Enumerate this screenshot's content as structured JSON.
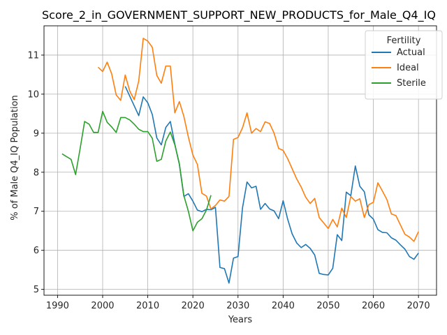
{
  "chart_data": {
    "type": "line",
    "title": "Score_2_in_GOVERNMENT_SUPPORT_NEW_PRODUCTS_for_Male_Q4_IQ",
    "xlabel": "Years",
    "ylabel": "% of Male Q4_IQ Population",
    "xlim": [
      1987,
      2074
    ],
    "ylim": [
      4.85,
      11.75
    ],
    "xticks": [
      1990,
      2000,
      2010,
      2020,
      2030,
      2040,
      2050,
      2060,
      2070
    ],
    "yticks": [
      5,
      6,
      7,
      8,
      9,
      10,
      11
    ],
    "grid": true,
    "legend": {
      "title": "Fertility",
      "placement": "top-right"
    },
    "series": [
      {
        "name": "Actual",
        "color": "#1f77b4",
        "x": [
          2005,
          2006,
          2007,
          2008,
          2009,
          2010,
          2011,
          2012,
          2013,
          2014,
          2015,
          2016,
          2017,
          2018,
          2019,
          2020,
          2021,
          2022,
          2023,
          2024,
          2025,
          2026,
          2027,
          2028,
          2029,
          2030,
          2031,
          2032,
          2033,
          2034,
          2035,
          2036,
          2037,
          2038,
          2039,
          2040,
          2041,
          2042,
          2043,
          2044,
          2045,
          2046,
          2047,
          2048,
          2049,
          2050,
          2051,
          2052,
          2053,
          2054,
          2055,
          2056,
          2057,
          2058,
          2059,
          2060,
          2061,
          2062,
          2063,
          2064,
          2065,
          2066,
          2067,
          2068,
          2069,
          2070
        ],
        "y": [
          10.2,
          9.95,
          9.7,
          9.45,
          9.93,
          9.78,
          9.48,
          8.88,
          8.7,
          9.15,
          9.3,
          8.72,
          8.2,
          7.38,
          7.45,
          7.26,
          7.03,
          6.99,
          7.05,
          7.04,
          7.1,
          5.56,
          5.53,
          5.16,
          5.8,
          5.84,
          7.09,
          7.75,
          7.6,
          7.64,
          7.05,
          7.2,
          7.06,
          7.01,
          6.81,
          7.27,
          6.8,
          6.42,
          6.19,
          6.07,
          6.15,
          6.05,
          5.88,
          5.41,
          5.38,
          5.37,
          5.54,
          6.4,
          6.25,
          7.49,
          7.4,
          8.16,
          7.64,
          7.5,
          6.91,
          6.8,
          6.53,
          6.46,
          6.45,
          6.32,
          6.26,
          6.14,
          6.03,
          5.84,
          5.77,
          5.93
        ]
      },
      {
        "name": "Ideal",
        "color": "#ff7f0e",
        "x": [
          1999,
          2000,
          2001,
          2002,
          2003,
          2004,
          2005,
          2006,
          2007,
          2008,
          2009,
          2010,
          2011,
          2012,
          2013,
          2014,
          2015,
          2016,
          2017,
          2018,
          2019,
          2020,
          2021,
          2022,
          2023,
          2024,
          2025,
          2026,
          2027,
          2028,
          2029,
          2030,
          2031,
          2032,
          2033,
          2034,
          2035,
          2036,
          2037,
          2038,
          2039,
          2040,
          2041,
          2042,
          2043,
          2044,
          2045,
          2046,
          2047,
          2048,
          2049,
          2050,
          2051,
          2052,
          2053,
          2054,
          2055,
          2056,
          2057,
          2058,
          2059,
          2060,
          2061,
          2062,
          2063,
          2064,
          2065,
          2066,
          2067,
          2068,
          2069,
          2070
        ],
        "y": [
          10.69,
          10.58,
          10.82,
          10.52,
          9.98,
          9.84,
          10.49,
          10.08,
          9.86,
          10.34,
          11.43,
          11.36,
          11.2,
          10.48,
          10.28,
          10.72,
          10.72,
          9.52,
          9.81,
          9.43,
          8.9,
          8.44,
          8.2,
          7.46,
          7.39,
          7.06,
          7.15,
          7.29,
          7.26,
          7.38,
          8.84,
          8.89,
          9.14,
          9.52,
          9.0,
          9.12,
          9.04,
          9.29,
          9.25,
          9.0,
          8.61,
          8.56,
          8.35,
          8.09,
          7.83,
          7.62,
          7.36,
          7.2,
          7.33,
          6.84,
          6.7,
          6.56,
          6.79,
          6.6,
          7.08,
          6.84,
          7.38,
          7.26,
          7.32,
          6.84,
          7.17,
          7.23,
          7.73,
          7.52,
          7.3,
          6.93,
          6.89,
          6.65,
          6.41,
          6.34,
          6.23,
          6.48
        ]
      },
      {
        "name": "Sterile",
        "color": "#2ca02c",
        "x": [
          1991,
          1992,
          1993,
          1994,
          1995,
          1996,
          1997,
          1998,
          1999,
          2000,
          2001,
          2002,
          2003,
          2004,
          2005,
          2006,
          2007,
          2008,
          2009,
          2010,
          2011,
          2012,
          2013,
          2014,
          2015,
          2016,
          2017,
          2018,
          2019,
          2020,
          2021,
          2022,
          2023,
          2024
        ],
        "y": [
          8.47,
          8.4,
          8.33,
          7.94,
          8.6,
          9.3,
          9.23,
          9.02,
          9.02,
          9.56,
          9.28,
          9.16,
          9.02,
          9.4,
          9.4,
          9.34,
          9.23,
          9.1,
          9.04,
          9.04,
          8.87,
          8.28,
          8.33,
          8.8,
          9.03,
          8.7,
          8.22,
          7.4,
          7.0,
          6.5,
          6.72,
          6.81,
          7.03,
          7.41
        ]
      }
    ]
  }
}
